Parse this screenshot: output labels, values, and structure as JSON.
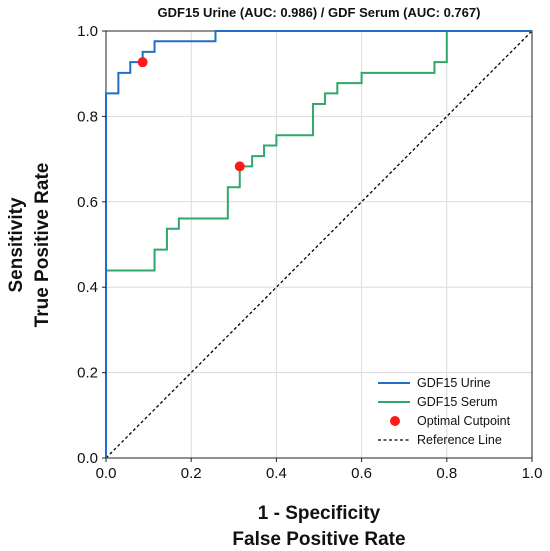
{
  "chart_data": {
    "type": "line",
    "title": "GDF15 Urine (AUC: 0.986) / GDF Serum (AUC: 0.767)",
    "xlabel_line1": "1 - Specificity",
    "xlabel_line2": "False Positive Rate",
    "ylabel_line1": "Sensitivity",
    "ylabel_line2": "True Positive Rate",
    "xlim": [
      0,
      1
    ],
    "ylim": [
      0,
      1
    ],
    "xticks": [
      "0.0",
      "0.2",
      "0.4",
      "0.6",
      "0.8",
      "1.0"
    ],
    "yticks": [
      "0.0",
      "0.2",
      "0.4",
      "0.6",
      "0.8",
      "1.0"
    ],
    "grid": true,
    "legend_position": "bottom-right",
    "series": [
      {
        "name": "GDF15 Urine",
        "color": "#1f6fc5",
        "points": [
          [
            0,
            0
          ],
          [
            0,
            0.854
          ],
          [
            0.029,
            0.854
          ],
          [
            0.029,
            0.902
          ],
          [
            0.057,
            0.902
          ],
          [
            0.057,
            0.927
          ],
          [
            0.086,
            0.927
          ],
          [
            0.086,
            0.951
          ],
          [
            0.114,
            0.951
          ],
          [
            0.114,
            0.976
          ],
          [
            0.257,
            0.976
          ],
          [
            0.257,
            1.0
          ],
          [
            1.0,
            1.0
          ]
        ]
      },
      {
        "name": "GDF15 Serum",
        "color": "#2fa86a",
        "points": [
          [
            0,
            0
          ],
          [
            0,
            0.439
          ],
          [
            0.114,
            0.439
          ],
          [
            0.114,
            0.488
          ],
          [
            0.143,
            0.488
          ],
          [
            0.143,
            0.537
          ],
          [
            0.171,
            0.537
          ],
          [
            0.171,
            0.561
          ],
          [
            0.286,
            0.561
          ],
          [
            0.286,
            0.634
          ],
          [
            0.314,
            0.634
          ],
          [
            0.314,
            0.683
          ],
          [
            0.343,
            0.683
          ],
          [
            0.343,
            0.707
          ],
          [
            0.371,
            0.707
          ],
          [
            0.371,
            0.732
          ],
          [
            0.4,
            0.732
          ],
          [
            0.4,
            0.756
          ],
          [
            0.486,
            0.756
          ],
          [
            0.486,
            0.829
          ],
          [
            0.514,
            0.829
          ],
          [
            0.514,
            0.854
          ],
          [
            0.543,
            0.854
          ],
          [
            0.543,
            0.878
          ],
          [
            0.6,
            0.878
          ],
          [
            0.6,
            0.902
          ],
          [
            0.771,
            0.902
          ],
          [
            0.771,
            0.927
          ],
          [
            0.8,
            0.927
          ],
          [
            0.8,
            1.0
          ],
          [
            1.0,
            1.0
          ]
        ]
      }
    ],
    "optimal_cutpoints": {
      "name": "Optimal Cutpoint",
      "color": "#ff1a1a",
      "points": [
        [
          0.086,
          0.927
        ],
        [
          0.314,
          0.683
        ]
      ]
    },
    "reference_line": {
      "name": "Reference Line",
      "color": "#000000",
      "points": [
        [
          0,
          0
        ],
        [
          1,
          1
        ]
      ]
    }
  }
}
